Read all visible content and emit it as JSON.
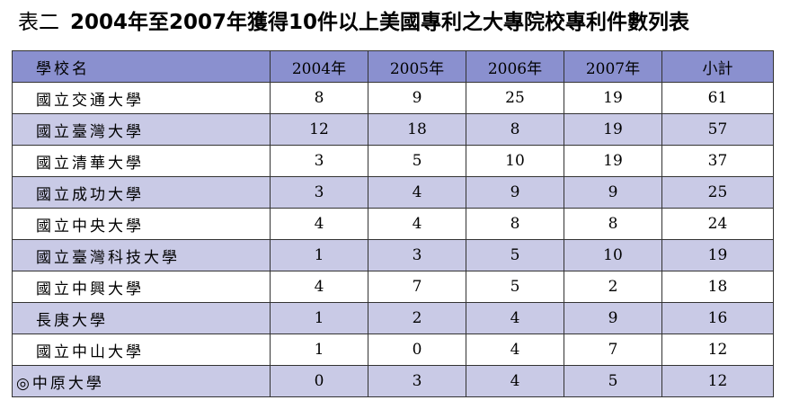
{
  "title": {
    "prefix": "表二",
    "main": "2004年至2007年獲得10件以上美國專利之大專院校專利件數列表"
  },
  "table": {
    "headers": [
      "學校名",
      "2004年",
      "2005年",
      "2006年",
      "2007年",
      "小計"
    ],
    "rows": [
      {
        "name": "國立交通大學",
        "v2004": "8",
        "v2005": "9",
        "v2006": "25",
        "v2007": "19",
        "total": "61"
      },
      {
        "name": "國立臺灣大學",
        "v2004": "12",
        "v2005": "18",
        "v2006": "8",
        "v2007": "19",
        "total": "57"
      },
      {
        "name": "國立清華大學",
        "v2004": "3",
        "v2005": "5",
        "v2006": "10",
        "v2007": "19",
        "total": "37"
      },
      {
        "name": "國立成功大學",
        "v2004": "3",
        "v2005": "4",
        "v2006": "9",
        "v2007": "9",
        "total": "25"
      },
      {
        "name": "國立中央大學",
        "v2004": "4",
        "v2005": "4",
        "v2006": "8",
        "v2007": "8",
        "total": "24"
      },
      {
        "name": "國立臺灣科技大學",
        "v2004": "1",
        "v2005": "3",
        "v2006": "5",
        "v2007": "10",
        "total": "19"
      },
      {
        "name": "國立中興大學",
        "v2004": "4",
        "v2005": "7",
        "v2006": "5",
        "v2007": "2",
        "total": "18"
      },
      {
        "name": "長庚大學",
        "v2004": "1",
        "v2005": "2",
        "v2006": "4",
        "v2007": "9",
        "total": "16"
      },
      {
        "name": "國立中山大學",
        "v2004": "1",
        "v2005": "0",
        "v2006": "4",
        "v2007": "7",
        "total": "12"
      },
      {
        "name": "◎中原大學",
        "v2004": "0",
        "v2005": "3",
        "v2006": "4",
        "v2007": "5",
        "total": "12"
      }
    ]
  },
  "colors": {
    "header_bg": "#8a90cf",
    "stripe_bg": "#c9cae6",
    "border": "#333333"
  }
}
